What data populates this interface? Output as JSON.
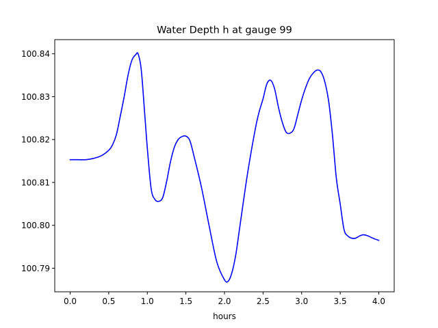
{
  "chart_data": {
    "type": "line",
    "title": "Water Depth h at gauge 99",
    "xlabel": "hours",
    "ylabel": "",
    "xlim": [
      -0.2,
      4.2
    ],
    "ylim": [
      100.7845,
      100.8433
    ],
    "grid": false,
    "line_color": "#0000ff",
    "xticks": [
      0.0,
      0.5,
      1.0,
      1.5,
      2.0,
      2.5,
      3.0,
      3.5,
      4.0
    ],
    "xtick_labels": [
      "0.0",
      "0.5",
      "1.0",
      "1.5",
      "2.0",
      "2.5",
      "3.0",
      "3.5",
      "4.0"
    ],
    "yticks": [
      100.79,
      100.8,
      100.81,
      100.82,
      100.83,
      100.84
    ],
    "ytick_labels": [
      "100.79",
      "100.80",
      "100.81",
      "100.82",
      "100.83",
      "100.84"
    ],
    "series": [
      {
        "x": [
          0.0,
          0.1,
          0.2,
          0.3,
          0.4,
          0.5,
          0.55,
          0.6,
          0.65,
          0.7,
          0.75,
          0.8,
          0.85,
          0.88,
          0.92,
          0.96,
          1.0,
          1.05,
          1.1,
          1.15,
          1.2,
          1.25,
          1.3,
          1.35,
          1.4,
          1.45,
          1.5,
          1.55,
          1.6,
          1.7,
          1.8,
          1.9,
          2.0,
          2.05,
          2.1,
          2.15,
          2.2,
          2.3,
          2.4,
          2.45,
          2.5,
          2.55,
          2.6,
          2.65,
          2.7,
          2.75,
          2.8,
          2.85,
          2.9,
          2.95,
          3.0,
          3.05,
          3.1,
          3.15,
          3.2,
          3.25,
          3.3,
          3.35,
          3.4,
          3.45,
          3.5,
          3.55,
          3.6,
          3.65,
          3.7,
          3.75,
          3.8,
          3.85,
          3.9,
          3.95,
          4.0
        ],
        "y": [
          100.8153,
          100.8153,
          100.8153,
          100.8156,
          100.8162,
          100.8175,
          100.8188,
          100.8212,
          100.8255,
          100.83,
          100.835,
          100.8385,
          100.8398,
          100.84,
          100.8365,
          100.8275,
          100.818,
          100.8085,
          100.806,
          100.8056,
          100.8065,
          100.8102,
          100.8148,
          100.8182,
          100.82,
          100.8207,
          100.8208,
          100.8198,
          100.8165,
          100.809,
          100.8,
          100.7915,
          100.7873,
          100.787,
          100.7892,
          100.7935,
          100.7998,
          100.8122,
          100.8225,
          100.8265,
          100.8295,
          100.833,
          100.8338,
          100.8318,
          100.8275,
          100.824,
          100.8217,
          100.8215,
          100.8225,
          100.8258,
          100.8292,
          100.832,
          100.8342,
          100.8355,
          100.8362,
          100.8358,
          100.8335,
          100.829,
          100.821,
          100.811,
          100.805,
          100.799,
          100.7975,
          100.797,
          100.797,
          100.7975,
          100.7978,
          100.7976,
          100.7972,
          100.7968,
          100.7965
        ]
      }
    ]
  }
}
